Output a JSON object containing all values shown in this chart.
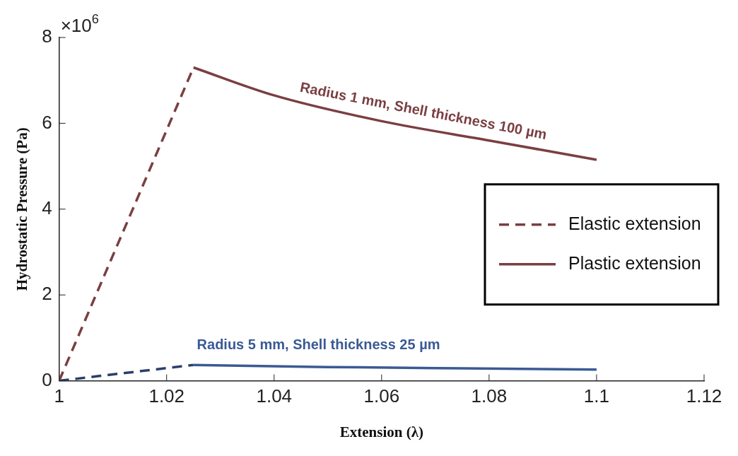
{
  "chart_data": {
    "type": "line",
    "xlabel": "Extension (λ)",
    "ylabel": "Hydrostatic Pressure (Pa)",
    "xlim": [
      1,
      1.12
    ],
    "xticks": [
      1,
      1.02,
      1.04,
      1.06,
      1.08,
      1.1,
      1.12
    ],
    "ylim": [
      0,
      8
    ],
    "yticks": [
      0,
      2,
      4,
      6,
      8
    ],
    "legend": "right",
    "marker": "none",
    "series": [
      {
        "name": "Elastic extension",
        "color": "#7a3f42",
        "line_style": "dashed",
        "x": [
          1,
          1.025
        ],
        "values": [
          0,
          7.3
        ]
      },
      {
        "name": "Plastic extension",
        "color": "#7a3f42",
        "line_style": "solid",
        "x": [
          1.025,
          1.04,
          1.06,
          1.08,
          1.1
        ],
        "values": [
          7.3,
          6.65,
          6.05,
          5.6,
          5.15
        ]
      },
      {
        "color": "#2b3f6b",
        "line_style": "dashed",
        "x": [
          1,
          1.025
        ],
        "values": [
          0,
          0.37
        ]
      },
      {
        "color": "#3a5a94",
        "line_style": "solid",
        "x": [
          1.025,
          1.05,
          1.075,
          1.1
        ],
        "values": [
          0.37,
          0.32,
          0.29,
          0.26
        ]
      }
    ],
    "annotations": [
      "×10$^{6}$",
      "Radius 1 mm, Shell thickness 100 µm",
      "Radius 5 mm, Shell thickness 25 µm"
    ]
  }
}
